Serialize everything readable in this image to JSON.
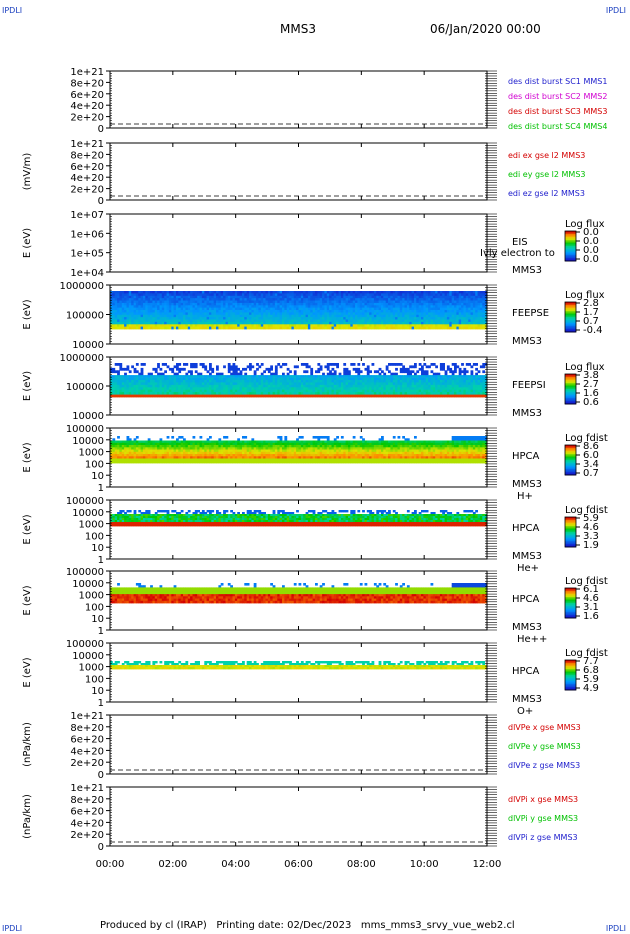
{
  "header": {
    "corner_label": "IPDLI",
    "title": "MMS3",
    "date": "06/Jan/2020 00:00"
  },
  "footer": {
    "produced_by": "Produced by cl (IRAP)",
    "printing_date": "Printing date: 02/Dec/2023",
    "script_name": "mms_mms3_srvy_vue_web2.cl"
  },
  "colors": {
    "red": "#d40000",
    "green": "#00c000",
    "blue": "#1c1ccc",
    "magenta": "#d000d0",
    "accent": "#1a3fbf"
  },
  "chart_data": [
    {
      "type": "line",
      "ylabel": "",
      "yticks": [
        "1e+21",
        "8e+20",
        "6e+20",
        "4e+20",
        "2e+20",
        "0"
      ],
      "series": [
        {
          "name": "des dist burst SC1 MMS1",
          "color": "#1c1ccc"
        },
        {
          "name": "des dist burst SC2 MMS2",
          "color": "#d000d0"
        },
        {
          "name": "des dist burst SC3 MMS3",
          "color": "#d40000"
        },
        {
          "name": "des dist burst SC4 MMS4",
          "color": "#00c000"
        }
      ]
    },
    {
      "type": "line",
      "ylabel": "(mV/m)",
      "yticks": [
        "1e+21",
        "8e+20",
        "6e+20",
        "4e+20",
        "2e+20",
        "0"
      ],
      "series": [
        {
          "name": "edi ex gse l2 MMS3",
          "color": "#d40000"
        },
        {
          "name": "edi ey gse l2 MMS3",
          "color": "#00c000"
        },
        {
          "name": "edi ez gse l2 MMS3",
          "color": "#1c1ccc"
        }
      ]
    },
    {
      "type": "heatmap",
      "ylabel": "E (eV)",
      "yticks": [
        "1e+07",
        "1e+06",
        "1e+05",
        "1e+04"
      ],
      "instrument": [
        "EIS",
        "MMS3"
      ],
      "overlay": "Ivly electron to",
      "colorbar": {
        "label": "Log flux",
        "ticks": [
          "0.0",
          "0.0",
          "0.0",
          "0.0"
        ]
      }
    },
    {
      "type": "heatmap",
      "ylabel": "E (eV)",
      "yticks": [
        "1000000",
        "100000",
        "10000"
      ],
      "instrument": [
        "FEEPSE",
        "MMS3"
      ],
      "colorbar": {
        "label": "Log flux",
        "ticks": [
          "2.8",
          "1.7",
          "0.7",
          "-0.4"
        ]
      }
    },
    {
      "type": "heatmap",
      "ylabel": "E (eV)",
      "yticks": [
        "1000000",
        "100000",
        "10000"
      ],
      "instrument": [
        "FEEPSI",
        "MMS3"
      ],
      "colorbar": {
        "label": "Log flux",
        "ticks": [
          "3.8",
          "2.7",
          "1.6",
          "0.6"
        ]
      }
    },
    {
      "type": "heatmap",
      "ylabel": "E (eV)",
      "yticks": [
        "100000",
        "10000",
        "1000",
        "100",
        "10",
        "1"
      ],
      "instrument": [
        "HPCA",
        "MMS3",
        "H+"
      ],
      "colorbar": {
        "label": "Log fdist",
        "ticks": [
          "8.6",
          "6.0",
          "3.4",
          "0.7"
        ]
      }
    },
    {
      "type": "heatmap",
      "ylabel": "E (eV)",
      "yticks": [
        "100000",
        "10000",
        "1000",
        "100",
        "10",
        "1"
      ],
      "instrument": [
        "HPCA",
        "MMS3",
        "He+"
      ],
      "colorbar": {
        "label": "Log fdist",
        "ticks": [
          "5.9",
          "4.6",
          "3.3",
          "1.9"
        ]
      }
    },
    {
      "type": "heatmap",
      "ylabel": "E (eV)",
      "yticks": [
        "100000",
        "10000",
        "1000",
        "100",
        "10",
        "1"
      ],
      "instrument": [
        "HPCA",
        "MMS3",
        "He++"
      ],
      "colorbar": {
        "label": "Log fdist",
        "ticks": [
          "6.1",
          "4.6",
          "3.1",
          "1.6"
        ]
      }
    },
    {
      "type": "heatmap",
      "ylabel": "E (eV)",
      "yticks": [
        "100000",
        "10000",
        "1000",
        "100",
        "10",
        "1"
      ],
      "instrument": [
        "HPCA",
        "MMS3",
        "O+"
      ],
      "colorbar": {
        "label": "Log fdist",
        "ticks": [
          "7.7",
          "6.8",
          "5.9",
          "4.9"
        ]
      }
    },
    {
      "type": "line",
      "ylabel": "(nPa/km)",
      "yticks": [
        "1e+21",
        "8e+20",
        "6e+20",
        "4e+20",
        "2e+20",
        "0"
      ],
      "series": [
        {
          "name": "dlVPe x gse MMS3",
          "color": "#d40000"
        },
        {
          "name": "dlVPe y gse MMS3",
          "color": "#00c000"
        },
        {
          "name": "dlVPe z gse MMS3",
          "color": "#1c1ccc"
        }
      ]
    },
    {
      "type": "line",
      "ylabel": "(nPa/km)",
      "yticks": [
        "1e+21",
        "8e+20",
        "6e+20",
        "4e+20",
        "2e+20",
        "0"
      ],
      "series": [
        {
          "name": "dlVPi x gse MMS3",
          "color": "#d40000"
        },
        {
          "name": "dlVPi y gse MMS3",
          "color": "#00c000"
        },
        {
          "name": "dlVPi z gse MMS3",
          "color": "#1c1ccc"
        }
      ]
    }
  ],
  "time_axis": {
    "ticks": [
      "00:00",
      "02:00",
      "04:00",
      "06:00",
      "08:00",
      "10:00",
      "12:00"
    ]
  }
}
